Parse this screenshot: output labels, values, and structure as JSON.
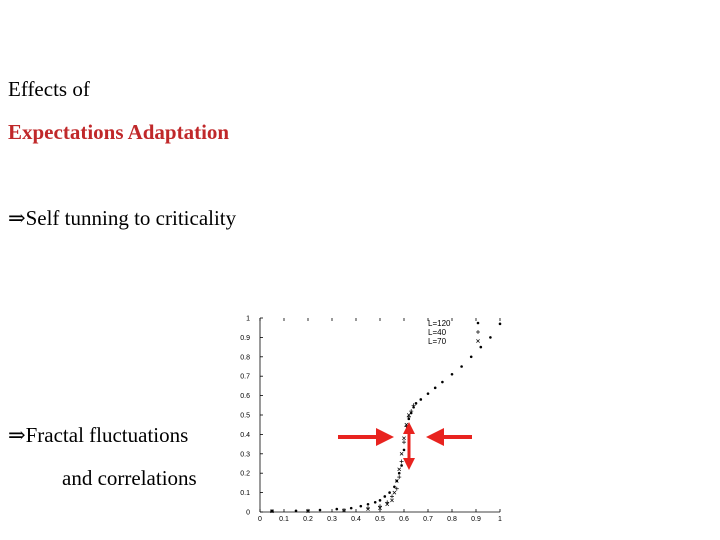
{
  "slide": {
    "line1": "Effects of",
    "line2": "Expectations Adaptation",
    "bullet1": "⇒Self tunning to criticality",
    "bullet2": "⇒Fractal fluctuations",
    "bullet2_cont": "and correlations"
  },
  "colors": {
    "title_red": "#c0282a",
    "arrow_red": "#e8231f"
  },
  "chart_data": {
    "type": "scatter",
    "title": "",
    "xlabel": "",
    "ylabel": "",
    "xlim": [
      0,
      1
    ],
    "ylim": [
      0,
      1
    ],
    "x_ticks": [
      "0",
      "0.1",
      "0.2",
      "0.3",
      "0.4",
      "0.5",
      "0.6",
      "0.7",
      "0.8",
      "0.9",
      "1"
    ],
    "y_ticks": [
      "0",
      "0.1",
      "0.2",
      "0.3",
      "0.4",
      "0.5",
      "0.6",
      "0.7",
      "0.8",
      "0.9",
      "1"
    ],
    "legend_position": "top-right",
    "series": [
      {
        "name": "L=120",
        "marker": "dot",
        "x": [
          0.05,
          0.15,
          0.25,
          0.32,
          0.38,
          0.42,
          0.45,
          0.48,
          0.5,
          0.52,
          0.54,
          0.56,
          0.57,
          0.58,
          0.59,
          0.6,
          0.61,
          0.62,
          0.63,
          0.64,
          0.65,
          0.67,
          0.7,
          0.73,
          0.76,
          0.8,
          0.84,
          0.88,
          0.92,
          0.96,
          1.0
        ],
        "y": [
          0.005,
          0.006,
          0.01,
          0.015,
          0.02,
          0.03,
          0.04,
          0.05,
          0.06,
          0.08,
          0.1,
          0.13,
          0.16,
          0.2,
          0.24,
          0.32,
          0.41,
          0.48,
          0.51,
          0.54,
          0.56,
          0.58,
          0.61,
          0.64,
          0.67,
          0.71,
          0.75,
          0.8,
          0.85,
          0.9,
          0.97
        ]
      },
      {
        "name": "L=40",
        "marker": "plus",
        "x": [
          0.05,
          0.2,
          0.35,
          0.45,
          0.5,
          0.53,
          0.55,
          0.57,
          0.58,
          0.59,
          0.6,
          0.61,
          0.62,
          0.63,
          0.64
        ],
        "y": [
          0.005,
          0.006,
          0.01,
          0.02,
          0.03,
          0.05,
          0.08,
          0.12,
          0.18,
          0.26,
          0.36,
          0.44,
          0.49,
          0.52,
          0.55
        ]
      },
      {
        "name": "L=70",
        "marker": "cross",
        "x": [
          0.05,
          0.2,
          0.35,
          0.45,
          0.5,
          0.53,
          0.55,
          0.56,
          0.57,
          0.58,
          0.59,
          0.6,
          0.61,
          0.62
        ],
        "y": [
          0.004,
          0.005,
          0.008,
          0.015,
          0.02,
          0.04,
          0.06,
          0.1,
          0.16,
          0.22,
          0.3,
          0.38,
          0.45,
          0.5
        ]
      }
    ]
  }
}
